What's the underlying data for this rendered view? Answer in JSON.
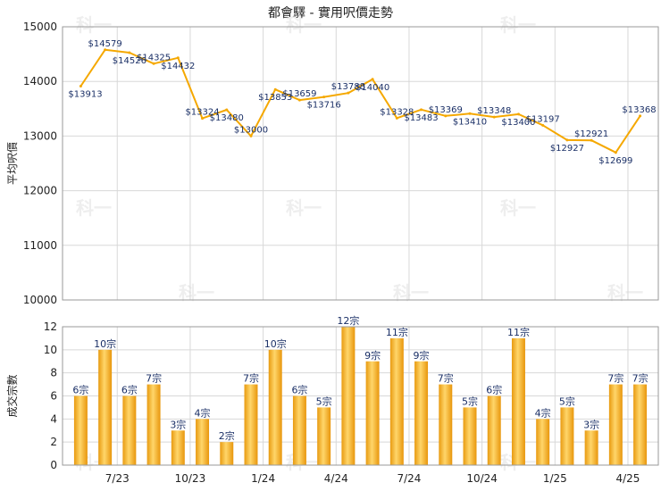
{
  "title": "都會驛 - 實用呎價走勢",
  "chart_data": [
    {
      "type": "line",
      "ylabel": "平均呎價",
      "ylim": [
        10000,
        15000
      ],
      "yticks": [
        10000,
        11000,
        12000,
        13000,
        14000,
        15000
      ],
      "series": [
        {
          "color": "#f5a800",
          "values": [
            13913,
            14579,
            14526,
            14325,
            14432,
            13324,
            13480,
            13000,
            13853,
            13659,
            13716,
            13788,
            14040,
            13328,
            13483,
            13369,
            13410,
            13348,
            13400,
            13197,
            12927,
            12921,
            12699,
            13368
          ],
          "labels": [
            "$13913",
            "$14579",
            "$14526",
            "$14325",
            "$14432",
            "$13324",
            "$13480",
            "$13000",
            "$13853",
            "$13659",
            "$13716",
            "$13788",
            "$14040",
            "$13328",
            "$13483",
            "$13369",
            "$13410",
            "$13348",
            "$13400",
            "$13197",
            "$12927",
            "$12921",
            "$12699",
            "$13368"
          ]
        }
      ]
    },
    {
      "type": "bar",
      "ylabel": "成交宗數",
      "ylim": [
        0,
        12
      ],
      "yticks": [
        0,
        2,
        4,
        6,
        8,
        10,
        12
      ],
      "x_tick_labels": [
        "7/23",
        "10/23",
        "1/24",
        "4/24",
        "7/24",
        "10/24",
        "1/25",
        "4/25"
      ],
      "x_tick_after_index": [
        1,
        4,
        7,
        10,
        13,
        16,
        19,
        22
      ],
      "series": [
        {
          "color": "#f0a818",
          "values": [
            6,
            10,
            6,
            7,
            3,
            4,
            2,
            7,
            10,
            6,
            5,
            12,
            9,
            11,
            9,
            7,
            5,
            6,
            11,
            4,
            5,
            3,
            7,
            7
          ],
          "labels": [
            "6宗",
            "10宗",
            "6宗",
            "7宗",
            "3宗",
            "4宗",
            "2宗",
            "7宗",
            "10宗",
            "6宗",
            "5宗",
            "12宗",
            "9宗",
            "11宗",
            "9宗",
            "7宗",
            "5宗",
            "6宗",
            "11宗",
            "4宗",
            "5宗",
            "3宗",
            "7宗",
            "7宗"
          ]
        }
      ]
    }
  ],
  "watermark": "科一"
}
